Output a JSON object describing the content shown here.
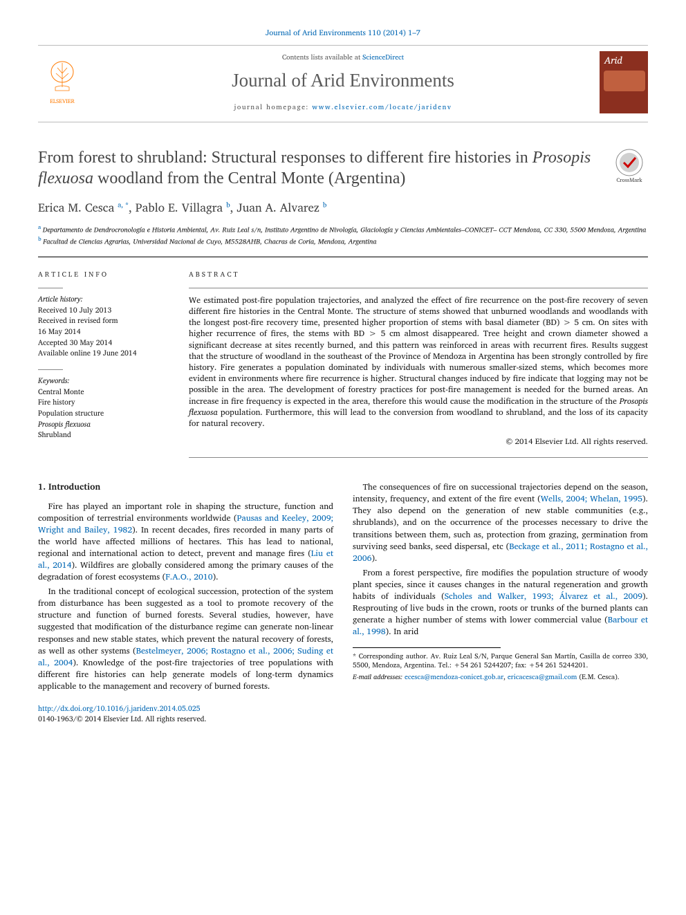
{
  "journal_ref": "Journal of Arid Environments 110 (2014) 1–7",
  "banner": {
    "contents_prefix": "Contents lists available at ",
    "contents_link": "ScienceDirect",
    "journal_title": "Journal of Arid Environments",
    "homepage_prefix": "journal homepage: ",
    "homepage_url": "www.elsevier.com/locate/jaridenv",
    "publisher_name": "ELSEVIER",
    "cover_word": "Arid"
  },
  "crossmark_label": "CrossMark",
  "title_pre": "From forest to shrubland: Structural responses to different fire histories in ",
  "title_italic": "Prosopis flexuosa",
  "title_post": " woodland from the Central Monte (Argentina)",
  "authors_html": "Erica M. Cesca|a, *|, Pablo E. Villagra|b|, Juan A. Alvarez|b",
  "authors": [
    {
      "name": "Erica M. Cesca",
      "sup": "a, *"
    },
    {
      "name": "Pablo E. Villagra",
      "sup": "b"
    },
    {
      "name": "Juan A. Alvarez",
      "sup": "b"
    }
  ],
  "affiliations": [
    {
      "sup": "a",
      "text": "Departamento de Dendrocronología e Historia Ambiental, Av. Ruiz Leal s/n, Instituto Argentino de Nivología, Glaciología y Ciencias Ambientales–CONICET– CCT Mendoza, CC 330, 5500 Mendoza, Argentina"
    },
    {
      "sup": "b",
      "text": "Facultad de Ciencias Agrarias, Universidad Nacional de Cuyo, M5528AHB, Chacras de Coria, Mendoza, Argentina"
    }
  ],
  "article_info_heading": "ARTICLE INFO",
  "abstract_heading": "ABSTRACT",
  "history_heading": "Article history:",
  "history": [
    "Received 10 July 2013",
    "Received in revised form",
    "16 May 2014",
    "Accepted 30 May 2014",
    "Available online 19 June 2014"
  ],
  "keywords_heading": "Keywords:",
  "keywords": [
    "Central Monte",
    "Fire history",
    "Population structure",
    "Prosopis flexuosa",
    "Shrubland"
  ],
  "abstract_pre": "We estimated post-fire population trajectories, and analyzed the effect of fire recurrence on the post-fire recovery of seven different fire histories in the Central Monte. The structure of stems showed that unburned woodlands and woodlands with the longest post-fire recovery time, presented higher proportion of stems with basal diameter (BD) > 5 cm. On sites with higher recurrence of fires, the stems with BD > 5 cm almost disappeared. Tree height and crown diameter showed a significant decrease at sites recently burned, and this pattern was reinforced in areas with recurrent fires. Results suggest that the structure of woodland in the southeast of the Province of Mendoza in Argentina has been strongly controlled by fire history. Fire generates a population dominated by individuals with numerous smaller-sized stems, which becomes more evident in environments where fire recurrence is higher. Structural changes induced by fire indicate that logging may not be possible in the area. The development of forestry practices for post-fire management is needed for the burned areas. An increase in fire frequency is expected in the area, therefore this would cause the modification in the structure of the ",
  "abstract_italic": "Prosopis flexuosa",
  "abstract_post": " population. Furthermore, this will lead to the conversion from woodland to shrubland, and the loss of its capacity for natural recovery.",
  "copyright": "© 2014 Elsevier Ltd. All rights reserved.",
  "section1_heading": "1. Introduction",
  "intro_paragraphs_parts": [
    [
      {
        "t": "Fire has played an important role in shaping the structure, function and composition of terrestrial environments worldwide ("
      },
      {
        "t": "Pausas and Keeley, 2009; Wright and Bailey, 1982",
        "c": true
      },
      {
        "t": "). In recent decades, fires recorded in many parts of the world have affected millions of hectares. This has lead to national, regional and international action to detect, prevent and manage fires ("
      },
      {
        "t": "Liu et al., 2014",
        "c": true
      },
      {
        "t": "). Wildfires are globally considered among the primary causes of the degradation of forest ecosystems ("
      },
      {
        "t": "F.A.O., 2010",
        "c": true
      },
      {
        "t": ")."
      }
    ],
    [
      {
        "t": "In the traditional concept of ecological succession, protection of the system from disturbance has been suggested as a tool to promote recovery of the structure and function of burned forests. Several studies, however, have suggested that modification of the disturbance regime can generate non-linear responses and new stable states, which prevent the natural recovery of forests, as well as other systems ("
      },
      {
        "t": "Bestelmeyer, 2006; Rostagno et al., 2006; Suding et al., 2004",
        "c": true
      },
      {
        "t": "). Knowledge of the post-fire trajectories of tree populations with different fire histories can help generate models of long-term dynamics applicable to the management and recovery of burned forests."
      }
    ],
    [
      {
        "t": "The consequences of fire on successional trajectories depend on the season, intensity, frequency, and extent of the fire event ("
      },
      {
        "t": "Wells, 2004; Whelan, 1995",
        "c": true
      },
      {
        "t": "). They also depend on the generation of new stable communities (e.g., shrublands), and on the occurrence of the processes necessary to drive the transitions between them, such as, protection from grazing, germination from surviving seed banks, seed dispersal, etc ("
      },
      {
        "t": "Beckage et al., 2011; Rostagno et al., 2006",
        "c": true
      },
      {
        "t": ")."
      }
    ],
    [
      {
        "t": "From a forest perspective, fire modifies the population structure of woody plant species, since it causes changes in the natural regeneration and growth habits of individuals ("
      },
      {
        "t": "Scholes and Walker, 1993; Álvarez et al., 2009",
        "c": true
      },
      {
        "t": "). Resprouting of live buds in the crown, roots or trunks of the burned plants can generate a higher number of stems with lower commercial value ("
      },
      {
        "t": "Barbour et al., 1998",
        "c": true
      },
      {
        "t": "). In arid"
      }
    ]
  ],
  "footnotes": {
    "corresp_label": "* Corresponding author. ",
    "corresp_body": "Av. Ruiz Leal S/N, Parque General San Martín, Casilla de correo 330, 5500, Mendoza, Argentina. Tel.: +54 261 5244207; fax: +54 261 5244201.",
    "email_label": "E-mail addresses:",
    "email1": "ecesca@mendoza-conicet.gob.ar",
    "email_sep": ", ",
    "email2": "ericacesca@gmail.com",
    "email_tail": " (E.M. Cesca)."
  },
  "footer": {
    "doi": "http://dx.doi.org/10.1016/j.jaridenv.2014.05.025",
    "issn_line": "0140-1963/© 2014 Elsevier Ltd. All rights reserved."
  },
  "colors": {
    "link": "#0066b3",
    "elsevier_orange": "#ff7a00",
    "cover_bg": "#8b2f1f"
  }
}
